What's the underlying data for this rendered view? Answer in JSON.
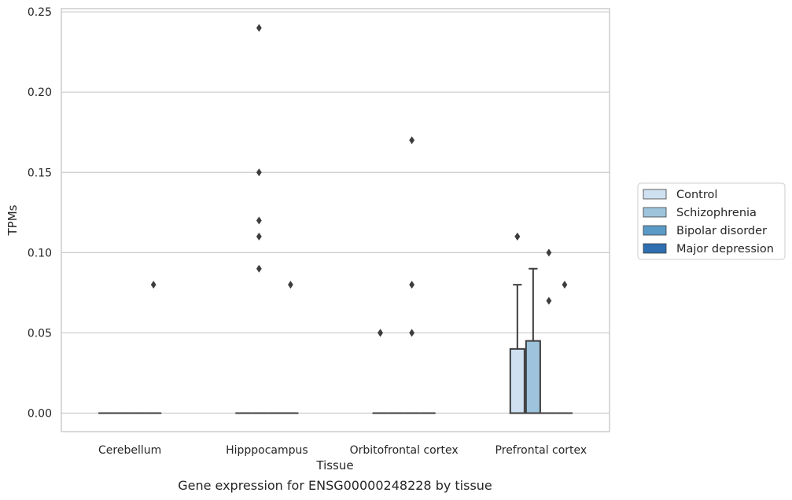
{
  "chart_data": {
    "type": "box",
    "caption": "Gene expression for ENSG00000248228 by tissue",
    "xlabel": "Tissue",
    "ylabel": "TPMs",
    "ylim": [
      -0.0115,
      0.252
    ],
    "yticks": [
      0.0,
      0.05,
      0.1,
      0.15,
      0.2,
      0.25
    ],
    "ytick_labels": [
      "0.00",
      "0.05",
      "0.10",
      "0.15",
      "0.20",
      "0.25"
    ],
    "grid": "horizontal",
    "legend_position": "right",
    "categories": [
      "Cerebellum",
      "Hipppocampus",
      "Orbitofrontal cortex",
      "Prefrontal cortex"
    ],
    "series": [
      {
        "name": "Control",
        "color": "#cfe1f0",
        "boxes": [
          {
            "q1": 0,
            "median": 0,
            "q3": 0,
            "whisker_low": 0,
            "whisker_high": 0,
            "outliers": []
          },
          {
            "q1": 0,
            "median": 0,
            "q3": 0,
            "whisker_low": 0,
            "whisker_high": 0,
            "outliers": []
          },
          {
            "q1": 0,
            "median": 0,
            "q3": 0,
            "whisker_low": 0,
            "whisker_high": 0,
            "outliers": [
              0.05,
              0.05
            ]
          },
          {
            "q1": 0,
            "median": 0,
            "q3": 0.04,
            "whisker_low": 0,
            "whisker_high": 0.08,
            "outliers": [
              0.11,
              0.11
            ]
          }
        ]
      },
      {
        "name": "Schizophrenia",
        "color": "#9dc4dc",
        "boxes": [
          {
            "q1": 0,
            "median": 0,
            "q3": 0,
            "whisker_low": 0,
            "whisker_high": 0,
            "outliers": []
          },
          {
            "q1": 0,
            "median": 0,
            "q3": 0,
            "whisker_low": 0,
            "whisker_high": 0,
            "outliers": [
              0.24,
              0.15,
              0.12,
              0.11,
              0.09
            ]
          },
          {
            "q1": 0,
            "median": 0,
            "q3": 0,
            "whisker_low": 0,
            "whisker_high": 0,
            "outliers": []
          },
          {
            "q1": 0,
            "median": 0,
            "q3": 0.045,
            "whisker_low": 0,
            "whisker_high": 0.09,
            "outliers": []
          }
        ]
      },
      {
        "name": "Bipolar disorder",
        "color": "#5a9ac6",
        "boxes": [
          {
            "q1": 0,
            "median": 0,
            "q3": 0,
            "whisker_low": 0,
            "whisker_high": 0,
            "outliers": []
          },
          {
            "q1": 0,
            "median": 0,
            "q3": 0,
            "whisker_low": 0,
            "whisker_high": 0,
            "outliers": []
          },
          {
            "q1": 0,
            "median": 0,
            "q3": 0,
            "whisker_low": 0,
            "whisker_high": 0,
            "outliers": [
              0.17,
              0.08,
              0.05
            ]
          },
          {
            "q1": 0,
            "median": 0,
            "q3": 0,
            "whisker_low": 0,
            "whisker_high": 0,
            "outliers": [
              0.1,
              0.07
            ]
          }
        ]
      },
      {
        "name": "Major depression",
        "color": "#2d6fb0",
        "boxes": [
          {
            "q1": 0,
            "median": 0,
            "q3": 0,
            "whisker_low": 0,
            "whisker_high": 0,
            "outliers": [
              0.08
            ]
          },
          {
            "q1": 0,
            "median": 0,
            "q3": 0,
            "whisker_low": 0,
            "whisker_high": 0,
            "outliers": [
              0.08
            ]
          },
          {
            "q1": 0,
            "median": 0,
            "q3": 0,
            "whisker_low": 0,
            "whisker_high": 0,
            "outliers": []
          },
          {
            "q1": 0,
            "median": 0,
            "q3": 0,
            "whisker_low": 0,
            "whisker_high": 0,
            "outliers": [
              0.08
            ]
          }
        ]
      }
    ]
  }
}
